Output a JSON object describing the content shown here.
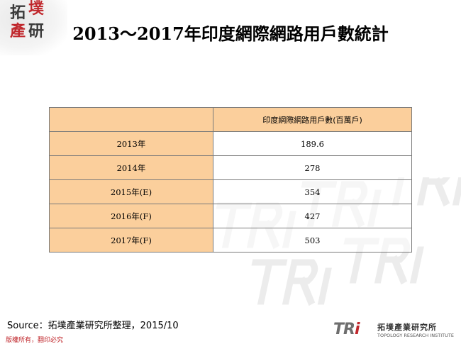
{
  "logo": {
    "chars": [
      "拓",
      "墣",
      "產",
      "研"
    ]
  },
  "title": "2013～2017年印度網際網路用戶數統計",
  "table": {
    "header": "印度網際網路用戶數(百萬戶)",
    "rows": [
      {
        "year": "2013年",
        "value": "189.6"
      },
      {
        "year": "2014年",
        "value": "278"
      },
      {
        "year": "2015年(E)",
        "value": "354"
      },
      {
        "year": "2016年(F)",
        "value": "427"
      },
      {
        "year": "2017年(F)",
        "value": "503"
      }
    ]
  },
  "source": "Source：拓墣產業研究所整理，2015/10",
  "copyright": "版權所有，翻印必究",
  "tri_logo": {
    "mark_t": "TR",
    "mark_i": "i",
    "chinese": "拓墣產業研究所",
    "english": "TOPOLOGY RESEARCH INSTITUTE"
  },
  "colors": {
    "accent": "#c0282d",
    "table_header": "#fbcf9c",
    "border": "#7a7a7a"
  }
}
